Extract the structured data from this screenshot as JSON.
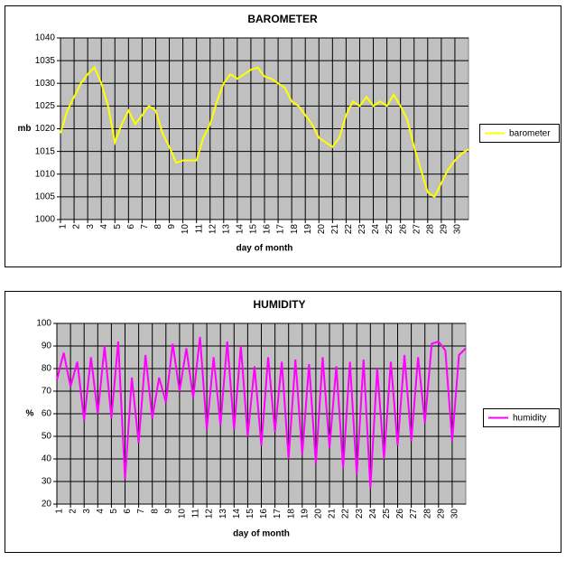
{
  "chart_data": [
    {
      "type": "line",
      "title": "BAROMETER",
      "x_label": "day of month",
      "y_label": "mb",
      "grid": true,
      "legend": "right",
      "xlim": [
        1,
        31
      ],
      "xticks": [
        1,
        2,
        3,
        4,
        5,
        6,
        7,
        8,
        9,
        10,
        11,
        12,
        13,
        14,
        15,
        16,
        17,
        18,
        19,
        20,
        21,
        22,
        23,
        24,
        25,
        26,
        27,
        28,
        29,
        30
      ],
      "ylim": [
        1000,
        1040
      ],
      "yticks": [
        1000,
        1005,
        1010,
        1015,
        1020,
        1025,
        1030,
        1035,
        1040
      ],
      "x": [
        1,
        1.5,
        2,
        2.5,
        3,
        3.5,
        4,
        4.5,
        5,
        5.5,
        6,
        6.5,
        7,
        7.5,
        8,
        8.5,
        9,
        9.5,
        10,
        10.5,
        11,
        11.5,
        12,
        12.5,
        13,
        13.5,
        14,
        14.5,
        15,
        15.5,
        16,
        16.5,
        17,
        17.5,
        18,
        18.5,
        19,
        19.5,
        20,
        20.5,
        21,
        21.5,
        22,
        22.5,
        23,
        23.5,
        24,
        24.5,
        25,
        25.5,
        26,
        26.5,
        27,
        27.5,
        28,
        28.5,
        29,
        29.5,
        30,
        30.5,
        31
      ],
      "series": [
        {
          "name": "barometer",
          "color": "#ffff00",
          "values": [
            1019,
            1024,
            1027,
            1030,
            1032,
            1033.5,
            1030,
            1025,
            1017,
            1021,
            1024,
            1021,
            1023,
            1025,
            1024,
            1019,
            1016,
            1012.5,
            1013,
            1013,
            1013,
            1018,
            1021,
            1026,
            1030,
            1032,
            1031,
            1032,
            1033,
            1033.5,
            1031.5,
            1031,
            1030,
            1029,
            1026,
            1025,
            1023,
            1021,
            1018,
            1017,
            1016,
            1018,
            1023,
            1026,
            1025,
            1027,
            1025,
            1026,
            1025,
            1027.5,
            1025,
            1022,
            1016,
            1011,
            1006,
            1005,
            1008,
            1011,
            1013,
            1014.5,
            1015.5
          ]
        }
      ]
    },
    {
      "type": "line",
      "title": "HUMIDITY",
      "x_label": "day of month",
      "y_label": "%",
      "grid": true,
      "legend": "right",
      "xlim": [
        1,
        31
      ],
      "xticks": [
        1,
        2,
        3,
        4,
        5,
        6,
        7,
        8,
        9,
        10,
        11,
        12,
        13,
        14,
        15,
        16,
        17,
        18,
        19,
        20,
        21,
        22,
        23,
        24,
        25,
        26,
        27,
        28,
        29,
        30
      ],
      "ylim": [
        20,
        100
      ],
      "yticks": [
        20,
        30,
        40,
        50,
        60,
        70,
        80,
        90,
        100
      ],
      "x": [
        1,
        1.5,
        2,
        2.5,
        3,
        3.5,
        4,
        4.5,
        5,
        5.5,
        6,
        6.5,
        7,
        7.5,
        8,
        8.5,
        9,
        9.5,
        10,
        10.5,
        11,
        11.5,
        12,
        12.5,
        13,
        13.5,
        14,
        14.5,
        15,
        15.5,
        16,
        16.5,
        17,
        17.5,
        18,
        18.5,
        19,
        19.5,
        20,
        20.5,
        21,
        21.5,
        22,
        22.5,
        23,
        23.5,
        24,
        24.5,
        25,
        25.5,
        26,
        26.5,
        27,
        27.5,
        28,
        28.5,
        29,
        29.5,
        30,
        30.5,
        31
      ],
      "series": [
        {
          "name": "humidity",
          "color": "#ff00ff",
          "values": [
            75,
            87,
            72,
            83,
            57,
            85,
            60,
            90,
            58,
            92,
            31,
            76,
            47,
            86,
            58,
            76,
            65,
            91,
            70,
            89,
            67,
            94,
            53,
            85,
            55,
            92,
            53,
            90,
            50,
            81,
            46,
            85,
            52,
            83,
            40,
            84,
            42,
            82,
            38,
            85,
            45,
            81,
            36,
            83,
            33,
            84,
            27,
            80,
            40,
            83,
            46,
            86,
            48,
            85,
            56,
            91,
            92,
            88,
            48,
            86,
            89
          ]
        }
      ]
    }
  ]
}
